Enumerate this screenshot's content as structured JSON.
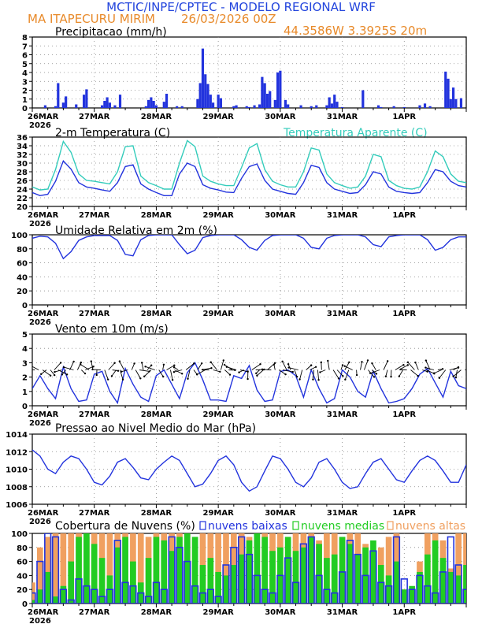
{
  "header": {
    "title": "MCTIC/INPE/CPTEC - MODELO REGIONAL WRF",
    "location": "MA ITAPECURU MIRIM",
    "run": "26/03/2026 00Z",
    "coords": "44.3586W 3.3925S 20m"
  },
  "colors": {
    "blue": "#2233dd",
    "cyan": "#33ccbb",
    "orange": "#f0a060",
    "green": "#22cc22",
    "header_blue": "#2244dd",
    "header_orange": "#e88a2a"
  },
  "x_axis": {
    "labels": [
      "26MAR",
      "27MAR",
      "28MAR",
      "29MAR",
      "30MAR",
      "31MAR",
      "1APR"
    ],
    "year": "2026"
  },
  "chart_data": [
    {
      "id": "precip",
      "type": "bar",
      "title": "Precipitacao (mm/h)",
      "ylim": [
        0,
        8
      ],
      "yticks": [
        0,
        1,
        2,
        3,
        4,
        5,
        6,
        7,
        8
      ],
      "x_unit": "hours since 26MAR 00Z",
      "x": [
        5,
        9,
        10,
        12,
        13,
        17,
        20,
        21,
        27,
        28,
        29,
        30,
        32,
        34,
        44,
        45,
        46,
        47,
        48,
        51,
        52,
        56,
        58,
        64,
        65,
        66,
        67,
        68,
        69,
        70,
        72,
        73,
        78,
        79,
        83,
        84,
        86,
        88,
        89,
        90,
        91,
        92,
        94,
        95,
        96,
        98,
        99,
        104,
        108,
        110,
        114,
        115,
        116,
        117,
        118,
        120,
        128,
        134,
        135,
        140,
        144,
        150,
        152,
        154,
        160,
        161,
        162,
        163,
        164,
        166
      ],
      "values": [
        0.3,
        0.2,
        2.8,
        0.6,
        1.3,
        0.4,
        1.5,
        2.1,
        0.3,
        0.8,
        1.2,
        0.6,
        0.3,
        1.5,
        0.2,
        0.9,
        1.2,
        0.8,
        0.3,
        0.7,
        1.6,
        0.2,
        0.2,
        1.0,
        2.8,
        6.7,
        3.8,
        2.7,
        1.5,
        0.6,
        1.5,
        1.1,
        0.2,
        0.3,
        0.2,
        0.1,
        0.3,
        0.4,
        3.5,
        2.8,
        1.6,
        1.9,
        0.9,
        4.0,
        4.2,
        0.9,
        0.4,
        0.3,
        0.2,
        0.3,
        0.3,
        1.2,
        0.5,
        1.5,
        0.7,
        0.1,
        2.0,
        0.3,
        0.1,
        0.2,
        0.1,
        0.3,
        0.5,
        0.2,
        4.1,
        3.3,
        1.0,
        2.3,
        1.0,
        1.1
      ]
    },
    {
      "id": "temp",
      "type": "line",
      "title": "2-m Temperatura (C)",
      "legend": "Temperatura Aparente (C)",
      "ylim": [
        20,
        36
      ],
      "yticks": [
        20,
        22,
        24,
        26,
        28,
        30,
        32,
        34,
        36
      ],
      "x": [
        0,
        3,
        6,
        9,
        12,
        15,
        18,
        21,
        24,
        27,
        30,
        33,
        36,
        39,
        42,
        45,
        48,
        51,
        54,
        57,
        60,
        63,
        66,
        69,
        72,
        75,
        78,
        81,
        84,
        87,
        90,
        93,
        96,
        99,
        102,
        105,
        108,
        111,
        114,
        117,
        120,
        123,
        126,
        129,
        132,
        135,
        138,
        141,
        144,
        147,
        150,
        153,
        156,
        159,
        162,
        165,
        168
      ],
      "series": [
        {
          "name": "2-m Temperatura (C)",
          "color": "blue",
          "values": [
            23.2,
            22.5,
            22.8,
            25.8,
            30.5,
            28.6,
            25.5,
            24.5,
            24.2,
            23.8,
            23.5,
            25.5,
            29.2,
            29.6,
            25.2,
            24.0,
            23.2,
            22.5,
            22.5,
            27.5,
            30.0,
            29.2,
            25.0,
            24.2,
            23.8,
            23.3,
            23.2,
            26.5,
            29.2,
            29.8,
            26.0,
            24.0,
            23.5,
            23.0,
            22.8,
            25.5,
            29.5,
            29.0,
            25.5,
            24.0,
            23.5,
            23.0,
            23.2,
            25.0,
            28.0,
            27.5,
            24.5,
            23.5,
            23.2,
            23.0,
            23.2,
            25.5,
            28.5,
            28.0,
            25.8,
            24.8,
            24.5
          ]
        },
        {
          "name": "Temperatura Aparente (C)",
          "color": "cyan",
          "values": [
            24.5,
            23.8,
            24.0,
            28.5,
            35.0,
            32.5,
            27.5,
            26.0,
            25.8,
            25.5,
            25.2,
            28.0,
            33.8,
            34.0,
            27.0,
            25.5,
            24.8,
            24.0,
            24.0,
            30.0,
            35.2,
            33.8,
            27.0,
            25.8,
            25.2,
            24.8,
            24.8,
            29.0,
            33.5,
            34.5,
            28.5,
            25.8,
            25.0,
            24.5,
            24.5,
            28.0,
            33.5,
            33.0,
            27.5,
            25.5,
            24.8,
            24.2,
            24.5,
            27.0,
            32.0,
            31.5,
            26.0,
            24.8,
            24.2,
            24.0,
            24.5,
            28.0,
            32.8,
            31.5,
            27.5,
            25.8,
            25.5
          ]
        }
      ]
    },
    {
      "id": "rh",
      "type": "line",
      "title": "Umidade Relativa em 2m (%)",
      "ylim": [
        0,
        100
      ],
      "yticks": [
        0,
        20,
        40,
        60,
        80,
        100
      ],
      "x": [
        0,
        3,
        6,
        9,
        12,
        15,
        18,
        21,
        24,
        27,
        30,
        33,
        36,
        39,
        42,
        45,
        48,
        51,
        54,
        57,
        60,
        63,
        66,
        69,
        72,
        75,
        78,
        81,
        84,
        87,
        90,
        93,
        96,
        99,
        102,
        105,
        108,
        111,
        114,
        117,
        120,
        123,
        126,
        129,
        132,
        135,
        138,
        141,
        144,
        147,
        150,
        153,
        156,
        159,
        162,
        165,
        168
      ],
      "series": [
        {
          "name": "Umidade Relativa",
          "color": "blue",
          "values": [
            95,
            98,
            97,
            88,
            66,
            76,
            92,
            97,
            99,
            99,
            99,
            92,
            72,
            70,
            93,
            99,
            100,
            100,
            100,
            86,
            73,
            78,
            96,
            99,
            100,
            100,
            100,
            93,
            82,
            78,
            92,
            99,
            100,
            100,
            100,
            95,
            82,
            80,
            95,
            99,
            100,
            100,
            100,
            97,
            86,
            83,
            97,
            99,
            100,
            100,
            100,
            93,
            78,
            82,
            93,
            97,
            97
          ]
        }
      ]
    },
    {
      "id": "wind",
      "type": "line",
      "title": "Vento em 10m (m/s)",
      "ylim": [
        0,
        5
      ],
      "yticks": [
        0,
        1,
        2,
        3,
        4,
        5
      ],
      "x": [
        0,
        3,
        6,
        9,
        12,
        15,
        18,
        21,
        24,
        27,
        30,
        33,
        36,
        39,
        42,
        45,
        48,
        51,
        54,
        57,
        60,
        63,
        66,
        69,
        72,
        75,
        78,
        81,
        84,
        87,
        90,
        93,
        96,
        99,
        102,
        105,
        108,
        111,
        114,
        117,
        120,
        123,
        126,
        129,
        132,
        135,
        138,
        141,
        144,
        147,
        150,
        153,
        156,
        159,
        162,
        165,
        168
      ],
      "series": [
        {
          "name": "Vento em 10m",
          "color": "blue",
          "values": [
            1.2,
            2.1,
            1.2,
            0.5,
            2.7,
            1.2,
            0.3,
            0.4,
            2.2,
            2.4,
            1.0,
            0.2,
            2.6,
            1.5,
            0.6,
            0.3,
            2.1,
            2.5,
            1.5,
            0.5,
            2.3,
            3.0,
            1.8,
            0.4,
            0.4,
            0.3,
            2.1,
            1.9,
            2.8,
            1.1,
            0.3,
            0.4,
            2.4,
            2.5,
            2.1,
            0.6,
            2.5,
            1.2,
            0.2,
            0.5,
            2.5,
            2.0,
            1.0,
            0.6,
            2.4,
            1.2,
            0.2,
            0.3,
            0.5,
            1.2,
            2.2,
            2.6,
            1.6,
            0.6,
            2.4,
            1.4,
            1.2
          ]
        }
      ]
    },
    {
      "id": "pressure",
      "type": "line",
      "title": "Pressao ao Nivel Medio do Mar (hPa)",
      "ylim": [
        1006,
        1014
      ],
      "yticks": [
        1006,
        1008,
        1010,
        1012,
        1014
      ],
      "x": [
        0,
        3,
        6,
        9,
        12,
        15,
        18,
        21,
        24,
        27,
        30,
        33,
        36,
        39,
        42,
        45,
        48,
        51,
        54,
        57,
        60,
        63,
        66,
        69,
        72,
        75,
        78,
        81,
        84,
        87,
        90,
        93,
        96,
        99,
        102,
        105,
        108,
        111,
        114,
        117,
        120,
        123,
        126,
        129,
        132,
        135,
        138,
        141,
        144,
        147,
        150,
        153,
        156,
        159,
        162,
        165,
        168
      ],
      "series": [
        {
          "name": "Pressao",
          "color": "blue",
          "values": [
            1012.2,
            1011.5,
            1010.0,
            1009.5,
            1010.8,
            1011.5,
            1011.2,
            1010.0,
            1008.5,
            1008.2,
            1009.2,
            1010.8,
            1011.2,
            1010.2,
            1009.0,
            1008.8,
            1010.0,
            1010.8,
            1011.5,
            1011.0,
            1009.5,
            1008.0,
            1008.3,
            1009.5,
            1011.0,
            1011.5,
            1010.5,
            1008.5,
            1007.5,
            1008.0,
            1009.8,
            1011.5,
            1011.2,
            1010.0,
            1008.5,
            1008.0,
            1009.0,
            1010.8,
            1011.2,
            1010.0,
            1008.5,
            1007.8,
            1008.0,
            1009.5,
            1010.8,
            1011.2,
            1010.0,
            1008.8,
            1008.5,
            1009.8,
            1011.0,
            1011.5,
            1011.0,
            1009.8,
            1008.5,
            1008.5,
            1010.5
          ]
        }
      ]
    },
    {
      "id": "clouds",
      "type": "bar",
      "title": "Cobertura de Nuvens (%)",
      "legend": [
        "nuvens baixas",
        "nuvens medias",
        "nuvens altas"
      ],
      "ylim": [
        0,
        100
      ],
      "yticks": [
        0,
        20,
        40,
        60,
        80,
        100
      ],
      "x": [
        0,
        3,
        6,
        9,
        12,
        15,
        18,
        21,
        24,
        27,
        30,
        33,
        36,
        39,
        42,
        45,
        48,
        51,
        54,
        57,
        60,
        63,
        66,
        69,
        72,
        75,
        78,
        81,
        84,
        87,
        90,
        93,
        96,
        99,
        102,
        105,
        108,
        111,
        114,
        117,
        120,
        123,
        126,
        129,
        132,
        135,
        138,
        141,
        144,
        147,
        150,
        153,
        156,
        159,
        162,
        165,
        168
      ],
      "series": [
        {
          "name": "nuvens altas",
          "color": "orange",
          "values": [
            30,
            80,
            95,
            100,
            100,
            100,
            100,
            95,
            100,
            100,
            100,
            100,
            100,
            100,
            100,
            95,
            100,
            100,
            100,
            100,
            100,
            95,
            100,
            100,
            100,
            100,
            100,
            100,
            95,
            100,
            100,
            100,
            100,
            95,
            100,
            100,
            100,
            90,
            100,
            100,
            95,
            100,
            100,
            85,
            60,
            80,
            95,
            100,
            20,
            15,
            60,
            100,
            100,
            90,
            50,
            100,
            100
          ]
        },
        {
          "name": "nuvens medias",
          "color": "green",
          "values": [
            5,
            20,
            45,
            10,
            25,
            60,
            95,
            100,
            85,
            65,
            40,
            80,
            95,
            60,
            30,
            65,
            95,
            90,
            75,
            95,
            100,
            95,
            55,
            65,
            45,
            40,
            55,
            70,
            90,
            100,
            95,
            75,
            80,
            95,
            75,
            80,
            95,
            85,
            65,
            70,
            95,
            85,
            70,
            80,
            90,
            55,
            40,
            60,
            20,
            25,
            45,
            70,
            90,
            65,
            45,
            40,
            55
          ]
        },
        {
          "name": "nuvens baixas",
          "color": "blue",
          "values": [
            15,
            60,
            100,
            95,
            20,
            5,
            35,
            25,
            20,
            10,
            20,
            90,
            30,
            25,
            15,
            10,
            30,
            20,
            95,
            80,
            60,
            25,
            15,
            20,
            10,
            55,
            80,
            95,
            70,
            40,
            20,
            15,
            40,
            65,
            30,
            85,
            95,
            40,
            20,
            15,
            45,
            90,
            70,
            40,
            75,
            30,
            25,
            95,
            35,
            20,
            40,
            25,
            15,
            45,
            95,
            55,
            20
          ]
        }
      ]
    }
  ]
}
